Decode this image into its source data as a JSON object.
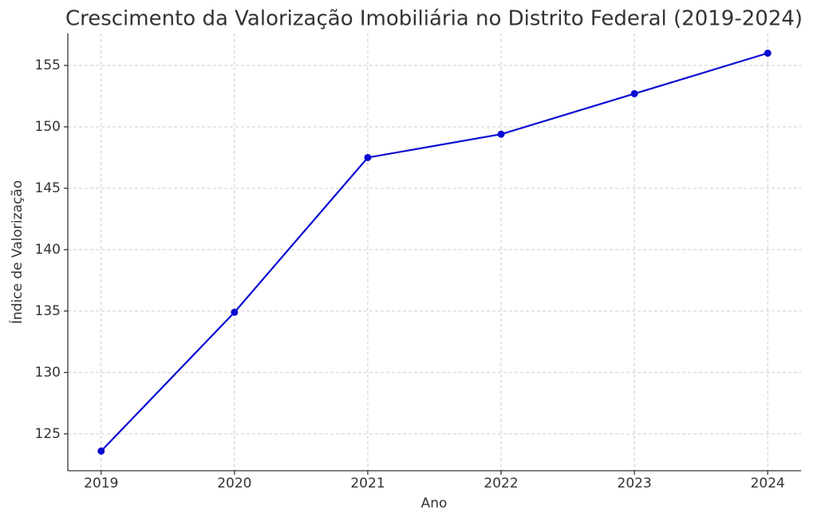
{
  "chart_data": {
    "type": "line",
    "title": "Crescimento da Valorização Imobiliária no Distrito Federal (2019-2024)",
    "x_label": "Ano",
    "y_label": "Índice de Valorização",
    "x": [
      2019,
      2020,
      2021,
      2022,
      2023,
      2024
    ],
    "series": [
      {
        "color": "#0a0ad2",
        "values": [
          123.6,
          134.9,
          147.5,
          149.4,
          152.7,
          156.0
        ]
      }
    ],
    "xlim": [
      2018.75,
      2024.25
    ],
    "xticks": [
      2019,
      2020,
      2021,
      2022,
      2023,
      2024
    ],
    "ylim": [
      122,
      157.6
    ],
    "yticks": [
      125,
      130,
      135,
      140,
      145,
      150,
      155
    ],
    "grid": true
  }
}
